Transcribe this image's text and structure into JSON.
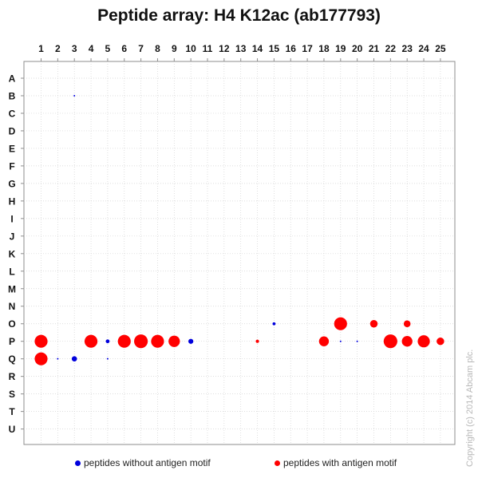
{
  "chart_data": {
    "type": "scatter",
    "title": "Peptide array: H4 K12ac (ab177793)",
    "x_categories": [
      "1",
      "2",
      "3",
      "4",
      "5",
      "6",
      "7",
      "8",
      "9",
      "10",
      "11",
      "12",
      "13",
      "14",
      "15",
      "16",
      "17",
      "18",
      "19",
      "20",
      "21",
      "22",
      "23",
      "24",
      "25"
    ],
    "y_categories": [
      "A",
      "B",
      "C",
      "D",
      "E",
      "F",
      "G",
      "H",
      "I",
      "J",
      "K",
      "L",
      "M",
      "N",
      "O",
      "P",
      "Q",
      "R",
      "S",
      "T",
      "U"
    ],
    "grid": true,
    "legend_placement": "bottom",
    "series": [
      {
        "name": "peptides without antigen motif",
        "color": "#0000dd",
        "points": [
          {
            "x": "3",
            "y": "B",
            "size": 0.08
          },
          {
            "x": "15",
            "y": "O",
            "size": 0.2
          },
          {
            "x": "5",
            "y": "P",
            "size": 0.25
          },
          {
            "x": "10",
            "y": "P",
            "size": 0.33
          },
          {
            "x": "19",
            "y": "P",
            "size": 0.08
          },
          {
            "x": "20",
            "y": "P",
            "size": 0.06
          },
          {
            "x": "2",
            "y": "Q",
            "size": 0.05
          },
          {
            "x": "3",
            "y": "Q",
            "size": 0.35
          },
          {
            "x": "5",
            "y": "Q",
            "size": 0.04
          }
        ]
      },
      {
        "name": "peptides with antigen motif",
        "color": "#ff0000",
        "points": [
          {
            "x": "19",
            "y": "O",
            "size": 0.85
          },
          {
            "x": "21",
            "y": "O",
            "size": 0.5
          },
          {
            "x": "23",
            "y": "O",
            "size": 0.45
          },
          {
            "x": "1",
            "y": "P",
            "size": 0.85
          },
          {
            "x": "4",
            "y": "P",
            "size": 0.85
          },
          {
            "x": "6",
            "y": "P",
            "size": 0.85
          },
          {
            "x": "7",
            "y": "P",
            "size": 0.9
          },
          {
            "x": "8",
            "y": "P",
            "size": 0.85
          },
          {
            "x": "9",
            "y": "P",
            "size": 0.75
          },
          {
            "x": "14",
            "y": "P",
            "size": 0.22
          },
          {
            "x": "18",
            "y": "P",
            "size": 0.65
          },
          {
            "x": "22",
            "y": "P",
            "size": 0.9
          },
          {
            "x": "23",
            "y": "P",
            "size": 0.7
          },
          {
            "x": "24",
            "y": "P",
            "size": 0.8
          },
          {
            "x": "25",
            "y": "P",
            "size": 0.5
          },
          {
            "x": "1",
            "y": "Q",
            "size": 0.85
          }
        ]
      }
    ]
  },
  "legend": {
    "without_label": "peptides without antigen motif",
    "with_label": "peptides with antigen motif"
  },
  "copyright": "Copyright (c) 2014 Abcam plc."
}
